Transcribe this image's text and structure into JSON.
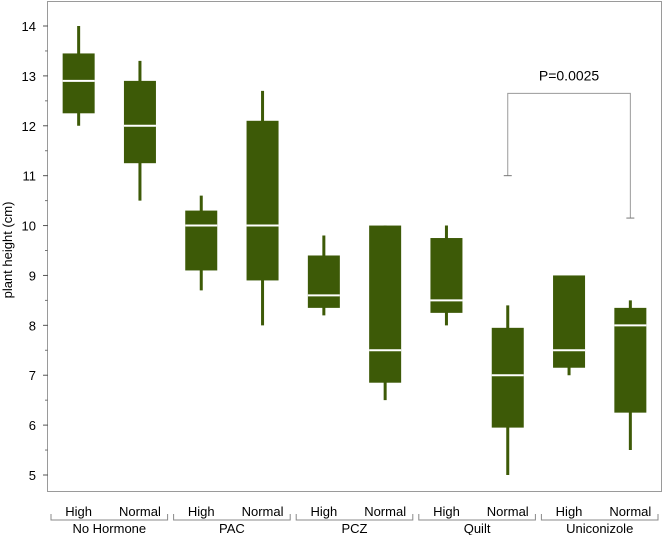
{
  "chart_data": {
    "type": "box",
    "ylabel": "plant height (cm)",
    "ylim": [
      4.5,
      14.5
    ],
    "yticks": [
      5,
      6,
      7,
      8,
      9,
      10,
      11,
      12,
      13,
      14
    ],
    "groups": [
      "No Hormone",
      "PAC",
      "PCZ",
      "Quilt",
      "Uniconizole"
    ],
    "subgroups": [
      "High",
      "Normal"
    ],
    "boxes": [
      {
        "group": "No Hormone",
        "sub": "High",
        "min": 12.0,
        "q1": 12.25,
        "median": 12.9,
        "q3": 13.45,
        "max": 14.0
      },
      {
        "group": "No Hormone",
        "sub": "Normal",
        "min": 10.5,
        "q1": 11.25,
        "median": 12.0,
        "q3": 12.9,
        "max": 13.3
      },
      {
        "group": "PAC",
        "sub": "High",
        "min": 8.7,
        "q1": 9.1,
        "median": 10.0,
        "q3": 10.3,
        "max": 10.6
      },
      {
        "group": "PAC",
        "sub": "Normal",
        "min": 8.0,
        "q1": 8.9,
        "median": 10.0,
        "q3": 12.1,
        "max": 12.7
      },
      {
        "group": "PCZ",
        "sub": "High",
        "min": 8.2,
        "q1": 8.35,
        "median": 8.6,
        "q3": 9.4,
        "max": 9.8
      },
      {
        "group": "PCZ",
        "sub": "Normal",
        "min": 6.5,
        "q1": 6.85,
        "median": 7.5,
        "q3": 10.0,
        "max": 10.0
      },
      {
        "group": "Quilt",
        "sub": "High",
        "min": 8.0,
        "q1": 8.25,
        "median": 8.5,
        "q3": 9.75,
        "max": 10.0
      },
      {
        "group": "Quilt",
        "sub": "Normal",
        "min": 5.0,
        "q1": 5.95,
        "median": 7.0,
        "q3": 7.95,
        "max": 8.4
      },
      {
        "group": "Uniconizole",
        "sub": "High",
        "min": 7.0,
        "q1": 7.15,
        "median": 7.5,
        "q3": 9.0,
        "max": 9.0
      },
      {
        "group": "Uniconizole",
        "sub": "Normal",
        "min": 5.5,
        "q1": 6.25,
        "median": 8.0,
        "q3": 8.35,
        "max": 8.5
      }
    ],
    "annotations": [
      {
        "text": "P=0.0025",
        "from_box": 7,
        "to_box": 9,
        "left_y": 11.0,
        "right_y": 10.15,
        "top_y": 12.65
      }
    ],
    "colors": {
      "box": "#3d5a07",
      "median": "#ffffff",
      "frame": "#9a9a9a"
    },
    "grid": false
  }
}
